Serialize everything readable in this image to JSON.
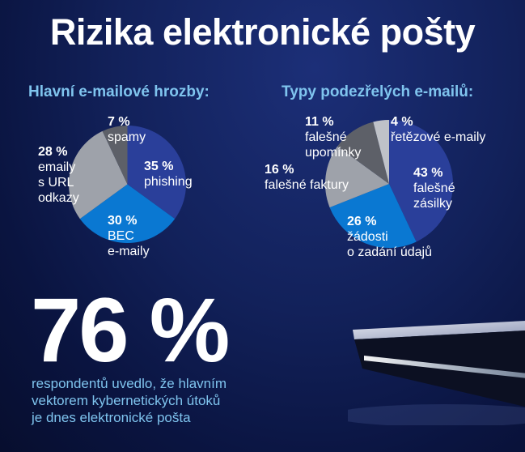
{
  "title": "Rizika elektronické pošty",
  "colors": {
    "accent_text": "#7fc4ee",
    "dark_blue": "#2a3f9a",
    "mid_blue": "#0a78d2",
    "grey": "#9ea2aa",
    "dark_grey": "#5d6068",
    "light_grey": "#bfc2c8"
  },
  "chart_data": [
    {
      "type": "pie",
      "title": "Hlavní e-mailové hrozby:",
      "slices": [
        {
          "label": "phishing",
          "value": 35,
          "pct_text": "35 %",
          "lines": [
            "phishing"
          ],
          "color": "#2a3f9a"
        },
        {
          "label": "BEC e-maily",
          "value": 30,
          "pct_text": "30 %",
          "lines": [
            "BEC",
            "e-maily"
          ],
          "color": "#0a78d2"
        },
        {
          "label": "emaily s URL odkazy",
          "value": 28,
          "pct_text": "28 %",
          "lines": [
            "emaily",
            "s URL",
            "odkazy"
          ],
          "color": "#9ea2aa"
        },
        {
          "label": "spamy",
          "value": 7,
          "pct_text": "7 %",
          "lines": [
            "spamy"
          ],
          "color": "#5d6068"
        }
      ]
    },
    {
      "type": "pie",
      "title": "Typy podezřelých e-mailů:",
      "slices": [
        {
          "label": "falešné zásilky",
          "value": 43,
          "pct_text": "43 %",
          "lines": [
            "falešné",
            "zásilky"
          ],
          "color": "#2a3f9a"
        },
        {
          "label": "žádosti o zadání údajů",
          "value": 26,
          "pct_text": "26 %",
          "lines": [
            "žádosti",
            "o zadání údajů"
          ],
          "color": "#0a78d2"
        },
        {
          "label": "falešné faktury",
          "value": 16,
          "pct_text": "16 %",
          "lines": [
            "falešné faktury"
          ],
          "color": "#9ea2aa"
        },
        {
          "label": "falešné upomínky",
          "value": 11,
          "pct_text": "11 %",
          "lines": [
            "falešné",
            "upomínky"
          ],
          "color": "#5d6068"
        },
        {
          "label": "řetězové e-maily",
          "value": 4,
          "pct_text": "4 %",
          "lines": [
            "řetězové e-maily"
          ],
          "color": "#bfc2c8"
        }
      ]
    }
  ],
  "highlight": {
    "value": "76 %",
    "caption_lines": [
      "respondentů uvedlo, že hlavním",
      "vektorem kybernetických útoků",
      "je dnes elektronické pošta"
    ]
  }
}
